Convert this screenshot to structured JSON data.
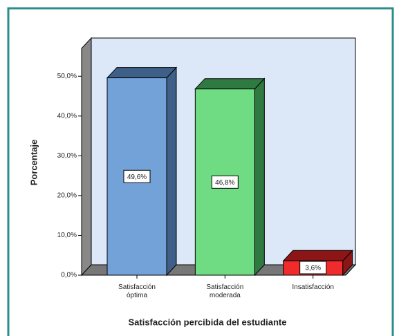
{
  "chart_data": {
    "type": "bar3d",
    "x_label": "Satisfacción percibida del estudiante",
    "y_label": "Porcentaje",
    "categories": [
      "Satisfacción óptima",
      "Satisfacción moderada",
      "Insatisfacción"
    ],
    "values": [
      49.6,
      46.8,
      3.6
    ],
    "value_labels": [
      "49,6%",
      "46,8%",
      "3,6%"
    ],
    "colors": [
      "#73a2d8",
      "#6fdc84",
      "#ef2b2b"
    ],
    "dark_colors": [
      "#3e5f88",
      "#2f7a40",
      "#8c1515"
    ],
    "ylim": [
      0,
      57
    ],
    "yticks": [
      {
        "value": 0,
        "label": "0,0%"
      },
      {
        "value": 10,
        "label": "10,0%"
      },
      {
        "value": 20,
        "label": "20,0%"
      },
      {
        "value": 30,
        "label": "30,0%"
      },
      {
        "value": 40,
        "label": "40,0%"
      },
      {
        "value": 50,
        "label": "50,0%"
      }
    ]
  }
}
